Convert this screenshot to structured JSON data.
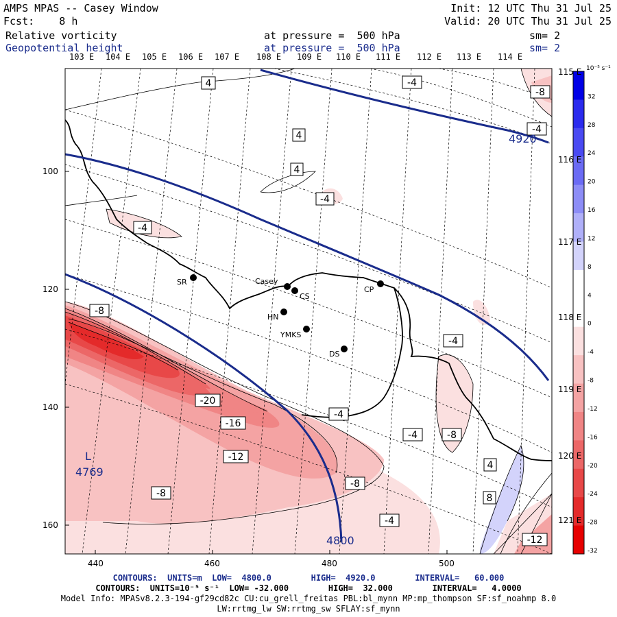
{
  "header": {
    "left_line1": "AMPS MPAS -- Casey Window",
    "left_line2": "Fcst:    8 h",
    "right_line1": "Init: 12 UTC Thu 31 Jul 25",
    "right_line2": "Valid: 20 UTC Thu 31 Jul 25",
    "field1": "Relative vorticity",
    "field2": "Geopotential height",
    "press1": "at pressure =  500 hPa",
    "press2": "at pressure =  500 hPa",
    "sm1": "sm= 2",
    "sm2": "sm= 2"
  },
  "lon_top": [
    "103 E",
    "104 E",
    "105 E",
    "106 E",
    "107 E",
    "108 E",
    "109 E",
    "110 E",
    "111 E",
    "112 E",
    "113 E",
    "114 E"
  ],
  "lon_right": [
    "115 E",
    "116 E",
    "117 E",
    "118 E",
    "119 E",
    "120 E",
    "121 E"
  ],
  "y_axis": [
    "100",
    "120",
    "140",
    "160"
  ],
  "x_axis": [
    "440",
    "460",
    "480",
    "500"
  ],
  "colorbar": {
    "unit": "10⁻⁵ s⁻¹",
    "labels": [
      "32",
      "28",
      "24",
      "20",
      "16",
      "12",
      "8",
      "4",
      "0",
      "-4",
      "-8",
      "-12",
      "-16",
      "-20",
      "-24",
      "-28",
      "-32"
    ],
    "colors": [
      "#0000e6",
      "#2b2bee",
      "#4a4af2",
      "#6b6bf4",
      "#8d8df6",
      "#b0b0f9",
      "#d3d3fb",
      "#ffffff",
      "#ffffff",
      "#fbe0e0",
      "#f8c2c2",
      "#f4a3a3",
      "#f08585",
      "#ec6767",
      "#e84848",
      "#e42a2a",
      "#e60000"
    ]
  },
  "stations": [
    "Casey",
    "CS",
    "SR",
    "HN",
    "YMKS",
    "DS",
    "CP"
  ],
  "contour_labels": [
    "4",
    "4",
    "4",
    "-4",
    "-4",
    "-4",
    "-8",
    "-4",
    "-8",
    "-20",
    "-16",
    "-12",
    "-4",
    "-4",
    "-8",
    "-8",
    "4",
    "8",
    "-8",
    "-4",
    "-12",
    "-4",
    "-8"
  ],
  "height_labels": [
    "4920",
    "4800"
  ],
  "low_label": "L",
  "low_value": "4769",
  "footer": {
    "line1": "CONTOURS:  UNITS=m  LOW=  4800.0        HIGH=  4920.0        INTERVAL=   60.000",
    "line2": "CONTOURS:  UNITS=10⁻⁵ s⁻¹  LOW= -32.000        HIGH=  32.000        INTERVAL=   4.0000",
    "line3": "Model Info: MPASv8.2.3-194-gf29cd82c CU:cu_grell_freitas PBL:bl_mynn MP:mp_thompson SF:sf_noahmp 8.0",
    "line4": "LW:rrtmg_lw SW:rrtmg_sw SFLAY:sf_mynn"
  },
  "colors": {
    "height_contour": "#1a2c8c",
    "strong_red": "#e03a3a"
  }
}
